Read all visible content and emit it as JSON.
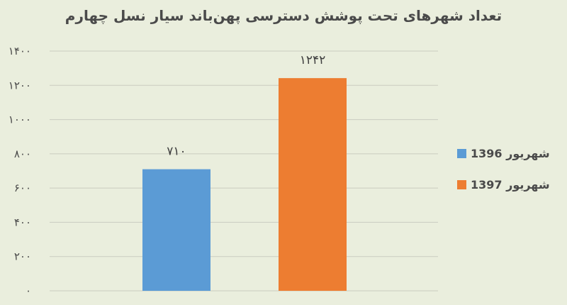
{
  "chart_data": {
    "type": "bar",
    "title": "تعداد شهرهای تحت پوشش دسترسی پهن‌باند سیار نسل چهارم",
    "categories": [
      "شهریور 1396",
      "شهریور 1397"
    ],
    "values": [
      710,
      1242
    ],
    "value_labels": [
      "۷۱۰",
      "۱۲۴۲"
    ],
    "colors": [
      "#5b9bd5",
      "#ed7d31"
    ],
    "ylim": [
      0,
      1400
    ],
    "yticks": [
      0,
      200,
      400,
      600,
      800,
      1000,
      1200,
      1400
    ],
    "ytick_labels": [
      "۰",
      "۲۰۰",
      "۴۰۰",
      "۶۰۰",
      "۸۰۰",
      "۱۰۰۰",
      "۱۲۰۰",
      "۱۴۰۰"
    ],
    "grid": true,
    "legend_position": "right",
    "xlabel": "",
    "ylabel": ""
  }
}
